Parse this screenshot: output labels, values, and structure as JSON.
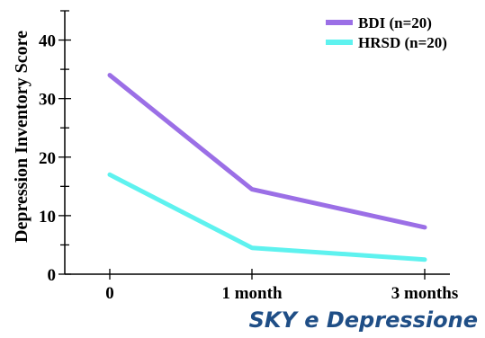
{
  "chart_data": {
    "type": "line",
    "ylabel": "Depression Inventory Score",
    "categories": [
      "0",
      "1 month",
      "3 months"
    ],
    "yticks": [
      "0",
      "10",
      "20",
      "30",
      "40"
    ],
    "ylim": [
      0,
      45
    ],
    "grid": false,
    "legend_position": "top-right",
    "series": [
      {
        "name": "BDI (n=20)",
        "values": [
          34,
          14.5,
          8
        ],
        "color": "#9b6fe6"
      },
      {
        "name": "HRSD (n=20)",
        "values": [
          17,
          4.5,
          2.5
        ],
        "color": "#5ef2ef"
      }
    ]
  },
  "footer": {
    "title": "SKY e Depressione",
    "color": "#1f4e86"
  }
}
